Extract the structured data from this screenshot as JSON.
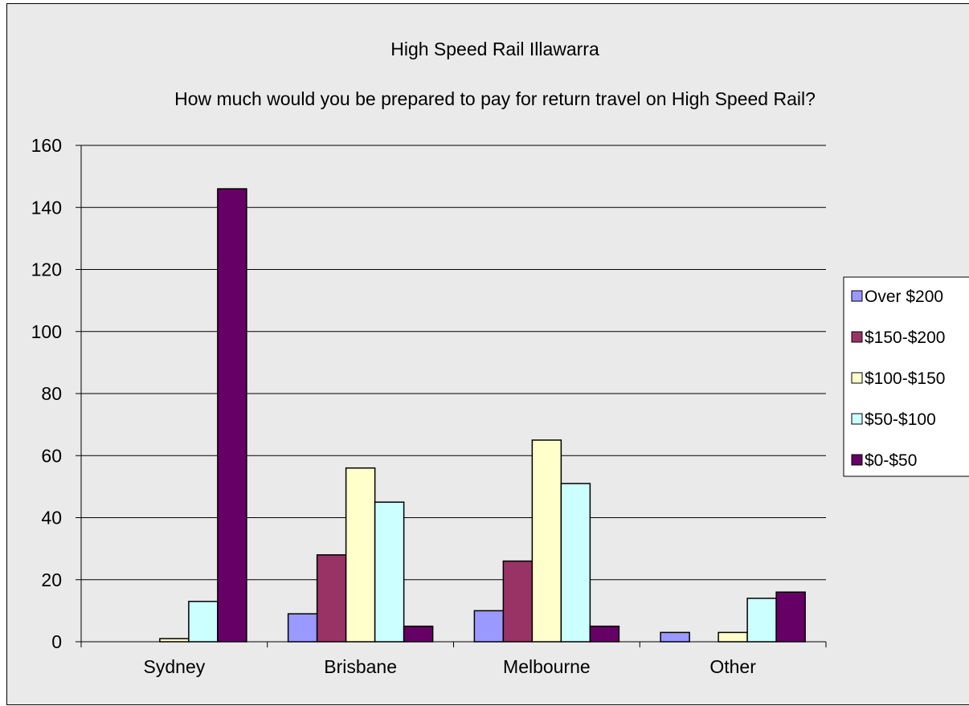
{
  "chart_data": {
    "type": "bar",
    "title": "High Speed Rail Illawarra",
    "subtitle": "How much would you be prepared to pay for return travel on High Speed Rail?",
    "xlabel": "",
    "ylabel": "",
    "categories": [
      "Sydney",
      "Brisbane",
      "Melbourne",
      "Other"
    ],
    "ylim": [
      0,
      160
    ],
    "yticks": [
      0,
      20,
      40,
      60,
      80,
      100,
      120,
      140,
      160
    ],
    "grid": true,
    "legend_position": "right",
    "series": [
      {
        "name": "Over $200",
        "color": "#9999ff",
        "values": [
          0,
          9,
          10,
          3
        ]
      },
      {
        "name": "$150-$200",
        "color": "#993366",
        "values": [
          0,
          28,
          26,
          0
        ]
      },
      {
        "name": "$100-$150",
        "color": "#ffffcc",
        "values": [
          1,
          56,
          65,
          3
        ]
      },
      {
        "name": "$50-$100",
        "color": "#ccffff",
        "values": [
          13,
          45,
          51,
          14
        ]
      },
      {
        "name": "$0-$50",
        "color": "#660066",
        "values": [
          146,
          5,
          5,
          16
        ]
      }
    ]
  }
}
